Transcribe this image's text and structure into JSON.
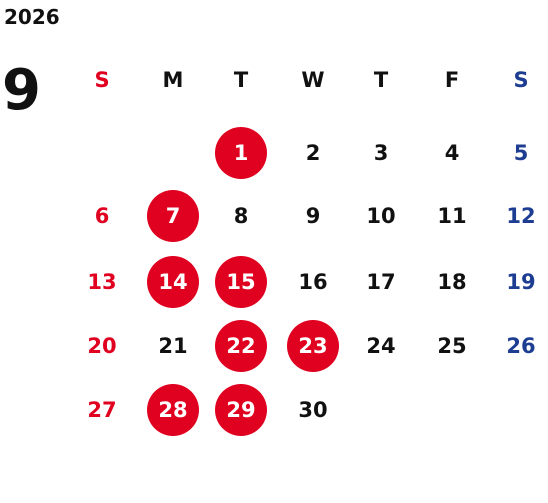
{
  "calendar": {
    "year": "2026",
    "month": "9",
    "weekdays": [
      "S",
      "M",
      "T",
      "W",
      "T",
      "F",
      "S"
    ],
    "first_weekday_index": 2,
    "highlighted_days": [
      1,
      7,
      14,
      15,
      22,
      23,
      28,
      29
    ],
    "days": [
      "1",
      "2",
      "3",
      "4",
      "5",
      "6",
      "7",
      "8",
      "9",
      "10",
      "11",
      "12",
      "13",
      "14",
      "15",
      "16",
      "17",
      "18",
      "19",
      "20",
      "21",
      "22",
      "23",
      "24",
      "25",
      "26",
      "27",
      "28",
      "29",
      "30"
    ]
  },
  "colors": {
    "text": "#111111",
    "sunday": "#e0001f",
    "saturday": "#1c3d91",
    "highlight_bg": "#e0001f",
    "highlight_text": "#ffffff"
  }
}
